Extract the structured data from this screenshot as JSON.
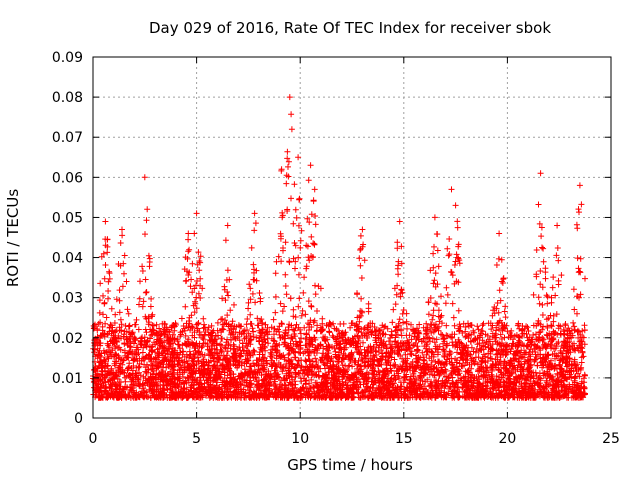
{
  "chart_data": {
    "type": "scatter",
    "title": "Day 029 of 2016, Rate Of TEC Index for receiver sbok",
    "xlabel": "GPS time / hours",
    "ylabel": "ROTI / TECUs",
    "xlim": [
      0,
      25
    ],
    "ylim": [
      0,
      0.09
    ],
    "x_ticks": [
      0,
      5,
      10,
      15,
      20,
      25
    ],
    "y_ticks": [
      0,
      0.01,
      0.02,
      0.03,
      0.04,
      0.05,
      0.06,
      0.07,
      0.08,
      0.09
    ],
    "x_tick_labels": [
      "0",
      "5",
      "10",
      "15",
      "20",
      "25"
    ],
    "y_tick_labels": [
      "0",
      "0.01",
      "0.02",
      "0.03",
      "0.04",
      "0.05",
      "0.06",
      "0.07",
      "0.08",
      "0.09"
    ],
    "grid": true,
    "marker": "+",
    "color": "#ff0000",
    "data_x_range": [
      0,
      23.75
    ],
    "series": [
      {
        "name": "ROTI",
        "typical_range": [
          0.005,
          0.03
        ],
        "peaks": [
          {
            "x": 0.6,
            "y": 0.049
          },
          {
            "x": 1.4,
            "y": 0.047
          },
          {
            "x": 2.5,
            "y": 0.06
          },
          {
            "x": 4.6,
            "y": 0.046
          },
          {
            "x": 5.0,
            "y": 0.051
          },
          {
            "x": 6.5,
            "y": 0.048
          },
          {
            "x": 7.8,
            "y": 0.051
          },
          {
            "x": 9.1,
            "y": 0.062
          },
          {
            "x": 9.5,
            "y": 0.08
          },
          {
            "x": 9.6,
            "y": 0.072
          },
          {
            "x": 9.9,
            "y": 0.065
          },
          {
            "x": 10.5,
            "y": 0.063
          },
          {
            "x": 10.7,
            "y": 0.057
          },
          {
            "x": 13.0,
            "y": 0.047
          },
          {
            "x": 14.8,
            "y": 0.049
          },
          {
            "x": 16.5,
            "y": 0.05
          },
          {
            "x": 17.3,
            "y": 0.057
          },
          {
            "x": 17.5,
            "y": 0.053
          },
          {
            "x": 19.6,
            "y": 0.046
          },
          {
            "x": 21.6,
            "y": 0.061
          },
          {
            "x": 22.4,
            "y": 0.048
          },
          {
            "x": 23.5,
            "y": 0.058
          }
        ]
      }
    ]
  }
}
